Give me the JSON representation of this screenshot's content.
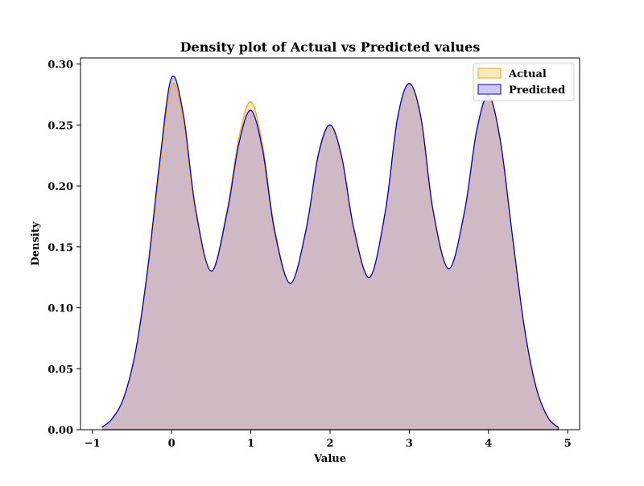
{
  "chart_data": {
    "type": "area",
    "title": "Density plot of Actual vs Predicted values",
    "xlabel": "Value",
    "ylabel": "Density",
    "xlim": [
      -1.15,
      5.15
    ],
    "ylim": [
      0,
      0.305
    ],
    "xticks": [
      -1,
      0,
      1,
      2,
      3,
      4,
      5
    ],
    "xtick_labels": [
      "−1",
      "0",
      "1",
      "2",
      "3",
      "4",
      "5"
    ],
    "yticks": [
      0.0,
      0.05,
      0.1,
      0.15,
      0.2,
      0.25,
      0.3
    ],
    "ytick_labels": [
      "0.00",
      "0.05",
      "0.10",
      "0.15",
      "0.20",
      "0.25",
      "0.30"
    ],
    "grid": false,
    "legend_position": "top-right",
    "series": [
      {
        "name": "Actual",
        "color": "#ffa500",
        "fill": "#ffa500",
        "x": [
          -0.88,
          -0.75,
          -0.6,
          -0.45,
          -0.3,
          -0.15,
          0.0,
          0.15,
          0.3,
          0.5,
          0.7,
          0.85,
          1.0,
          1.15,
          1.3,
          1.5,
          1.7,
          1.85,
          2.0,
          2.15,
          2.3,
          2.5,
          2.7,
          2.85,
          3.0,
          3.15,
          3.3,
          3.5,
          3.7,
          3.85,
          4.0,
          4.15,
          4.3,
          4.45,
          4.6,
          4.75,
          4.88
        ],
        "y": [
          0.002,
          0.009,
          0.027,
          0.065,
          0.13,
          0.215,
          0.283,
          0.254,
          0.18,
          0.13,
          0.18,
          0.24,
          0.269,
          0.233,
          0.165,
          0.12,
          0.165,
          0.225,
          0.25,
          0.223,
          0.165,
          0.125,
          0.18,
          0.255,
          0.284,
          0.255,
          0.18,
          0.132,
          0.18,
          0.245,
          0.274,
          0.237,
          0.16,
          0.085,
          0.035,
          0.01,
          0.002
        ]
      },
      {
        "name": "Predicted",
        "color": "#0000cc",
        "fill": "#3b2bd6",
        "x": [
          -0.88,
          -0.75,
          -0.6,
          -0.45,
          -0.3,
          -0.15,
          0.0,
          0.15,
          0.3,
          0.5,
          0.7,
          0.85,
          1.0,
          1.15,
          1.3,
          1.5,
          1.7,
          1.85,
          2.0,
          2.15,
          2.3,
          2.5,
          2.7,
          2.85,
          3.0,
          3.15,
          3.3,
          3.5,
          3.7,
          3.85,
          4.0,
          4.15,
          4.3,
          4.45,
          4.6,
          4.75,
          4.88
        ],
        "y": [
          0.002,
          0.009,
          0.027,
          0.066,
          0.133,
          0.22,
          0.289,
          0.258,
          0.182,
          0.13,
          0.178,
          0.235,
          0.262,
          0.229,
          0.163,
          0.12,
          0.165,
          0.225,
          0.25,
          0.223,
          0.165,
          0.125,
          0.18,
          0.255,
          0.284,
          0.255,
          0.18,
          0.132,
          0.18,
          0.245,
          0.274,
          0.237,
          0.16,
          0.085,
          0.035,
          0.01,
          0.002
        ]
      }
    ]
  }
}
